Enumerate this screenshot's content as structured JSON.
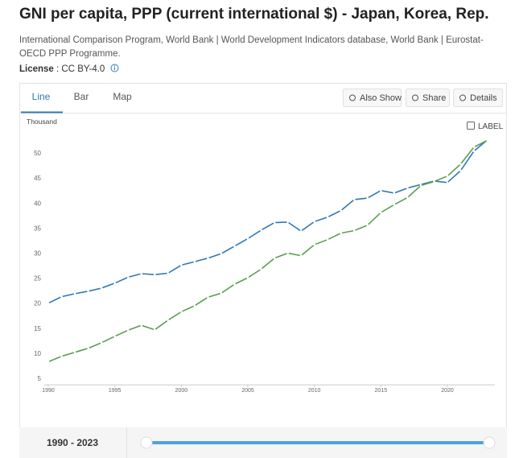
{
  "header": {
    "title": "GNI per capita, PPP (current international $) - Japan, Korea, Rep.",
    "source": "International Comparison Program, World Bank | World Development Indicators database, World Bank | Eurostat-OECD PPP Programme.",
    "license_label": "License",
    "license_value": ": CC BY-4.0"
  },
  "tabs": [
    "Line",
    "Bar",
    "Map"
  ],
  "buttons": [
    "Also Show",
    "Share",
    "Details"
  ],
  "label_toggle": "LABEL",
  "range_label": "1990 - 2023",
  "chart_data": {
    "type": "line",
    "y_axis_label": "Thousand",
    "x": [
      1990,
      1991,
      1992,
      1993,
      1994,
      1995,
      1996,
      1997,
      1998,
      1999,
      2000,
      2001,
      2002,
      2003,
      2004,
      2005,
      2006,
      2007,
      2008,
      2009,
      2010,
      2011,
      2012,
      2013,
      2014,
      2015,
      2016,
      2017,
      2018,
      2019,
      2020,
      2021,
      2022,
      2023
    ],
    "series": [
      {
        "color": "#2e78b7",
        "values": [
          20.0,
          21.3,
          21.9,
          22.4,
          23.0,
          24.0,
          25.2,
          25.9,
          25.7,
          26.0,
          27.6,
          28.3,
          29.0,
          29.9,
          31.4,
          32.9,
          34.6,
          36.1,
          36.2,
          34.4,
          36.3,
          37.2,
          38.5,
          40.7,
          41.0,
          42.5,
          42.0,
          43.0,
          43.7,
          44.4,
          44.1,
          46.5,
          50.4,
          52.6
        ]
      },
      {
        "color": "#5b9e52",
        "values": [
          8.3,
          9.4,
          10.2,
          11.0,
          12.1,
          13.4,
          14.6,
          15.6,
          14.7,
          16.6,
          18.3,
          19.5,
          21.2,
          22.0,
          23.8,
          25.1,
          26.8,
          29.0,
          30.0,
          29.5,
          31.7,
          32.7,
          34.0,
          34.5,
          35.6,
          38.1,
          39.7,
          41.1,
          43.5,
          44.3,
          45.4,
          47.8,
          51.2,
          52.5
        ]
      }
    ],
    "xlim": [
      1990,
      2023
    ],
    "xticks": [
      1990,
      1995,
      2000,
      2005,
      2010,
      2015,
      2020
    ],
    "ylim": [
      3.7,
      53
    ],
    "yticks": [
      5,
      10,
      15,
      20,
      25,
      30,
      35,
      40,
      45,
      50
    ]
  }
}
